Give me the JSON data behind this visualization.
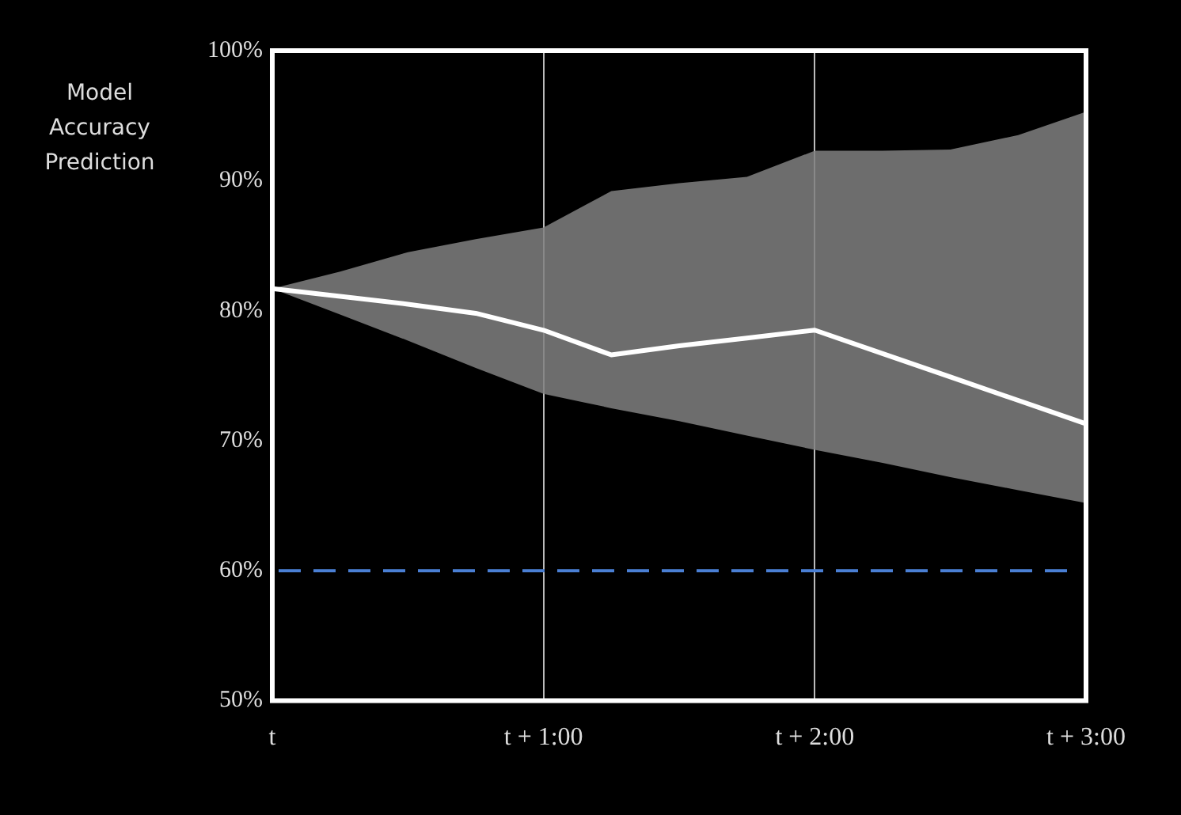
{
  "chart_data": {
    "type": "line",
    "ylabel": "Model Accuracy Prediction",
    "categories": [
      "t",
      null,
      null,
      null,
      "t + 1:00",
      null,
      null,
      null,
      "t + 2:00",
      null,
      null,
      null,
      "t + 3:00"
    ],
    "series": [
      {
        "color": "#ffffff",
        "values": [
          81.7,
          81.1,
          80.5,
          79.8,
          78.5,
          76.6,
          77.3,
          77.9,
          78.5,
          76.7,
          74.9,
          73.1,
          71.3
        ],
        "lower": [
          81.7,
          79.7,
          77.7,
          75.6,
          73.6,
          72.5,
          71.5,
          70.4,
          69.3,
          68.3,
          67.2,
          66.2,
          65.2
        ],
        "upper": [
          81.7,
          83.0,
          84.5,
          85.5,
          86.4,
          89.2,
          89.8,
          90.3,
          92.3,
          92.3,
          92.4,
          93.5,
          95.3
        ]
      }
    ],
    "ylim": [
      50,
      100
    ],
    "yticks": [
      {
        "value": 50,
        "label": "50%"
      },
      {
        "value": 60,
        "label": "60%"
      },
      {
        "value": 70,
        "label": "70%"
      },
      {
        "value": 80,
        "label": "80%"
      },
      {
        "value": 90,
        "label": "90%"
      },
      {
        "value": 100,
        "label": "100%"
      }
    ],
    "grid": "x",
    "legend": false,
    "marker": "none",
    "line_style": "solid",
    "ref_lines": [
      {
        "axis": "y",
        "value": 60,
        "color": "#4a7fd4",
        "line_style": "dashed"
      }
    ]
  }
}
